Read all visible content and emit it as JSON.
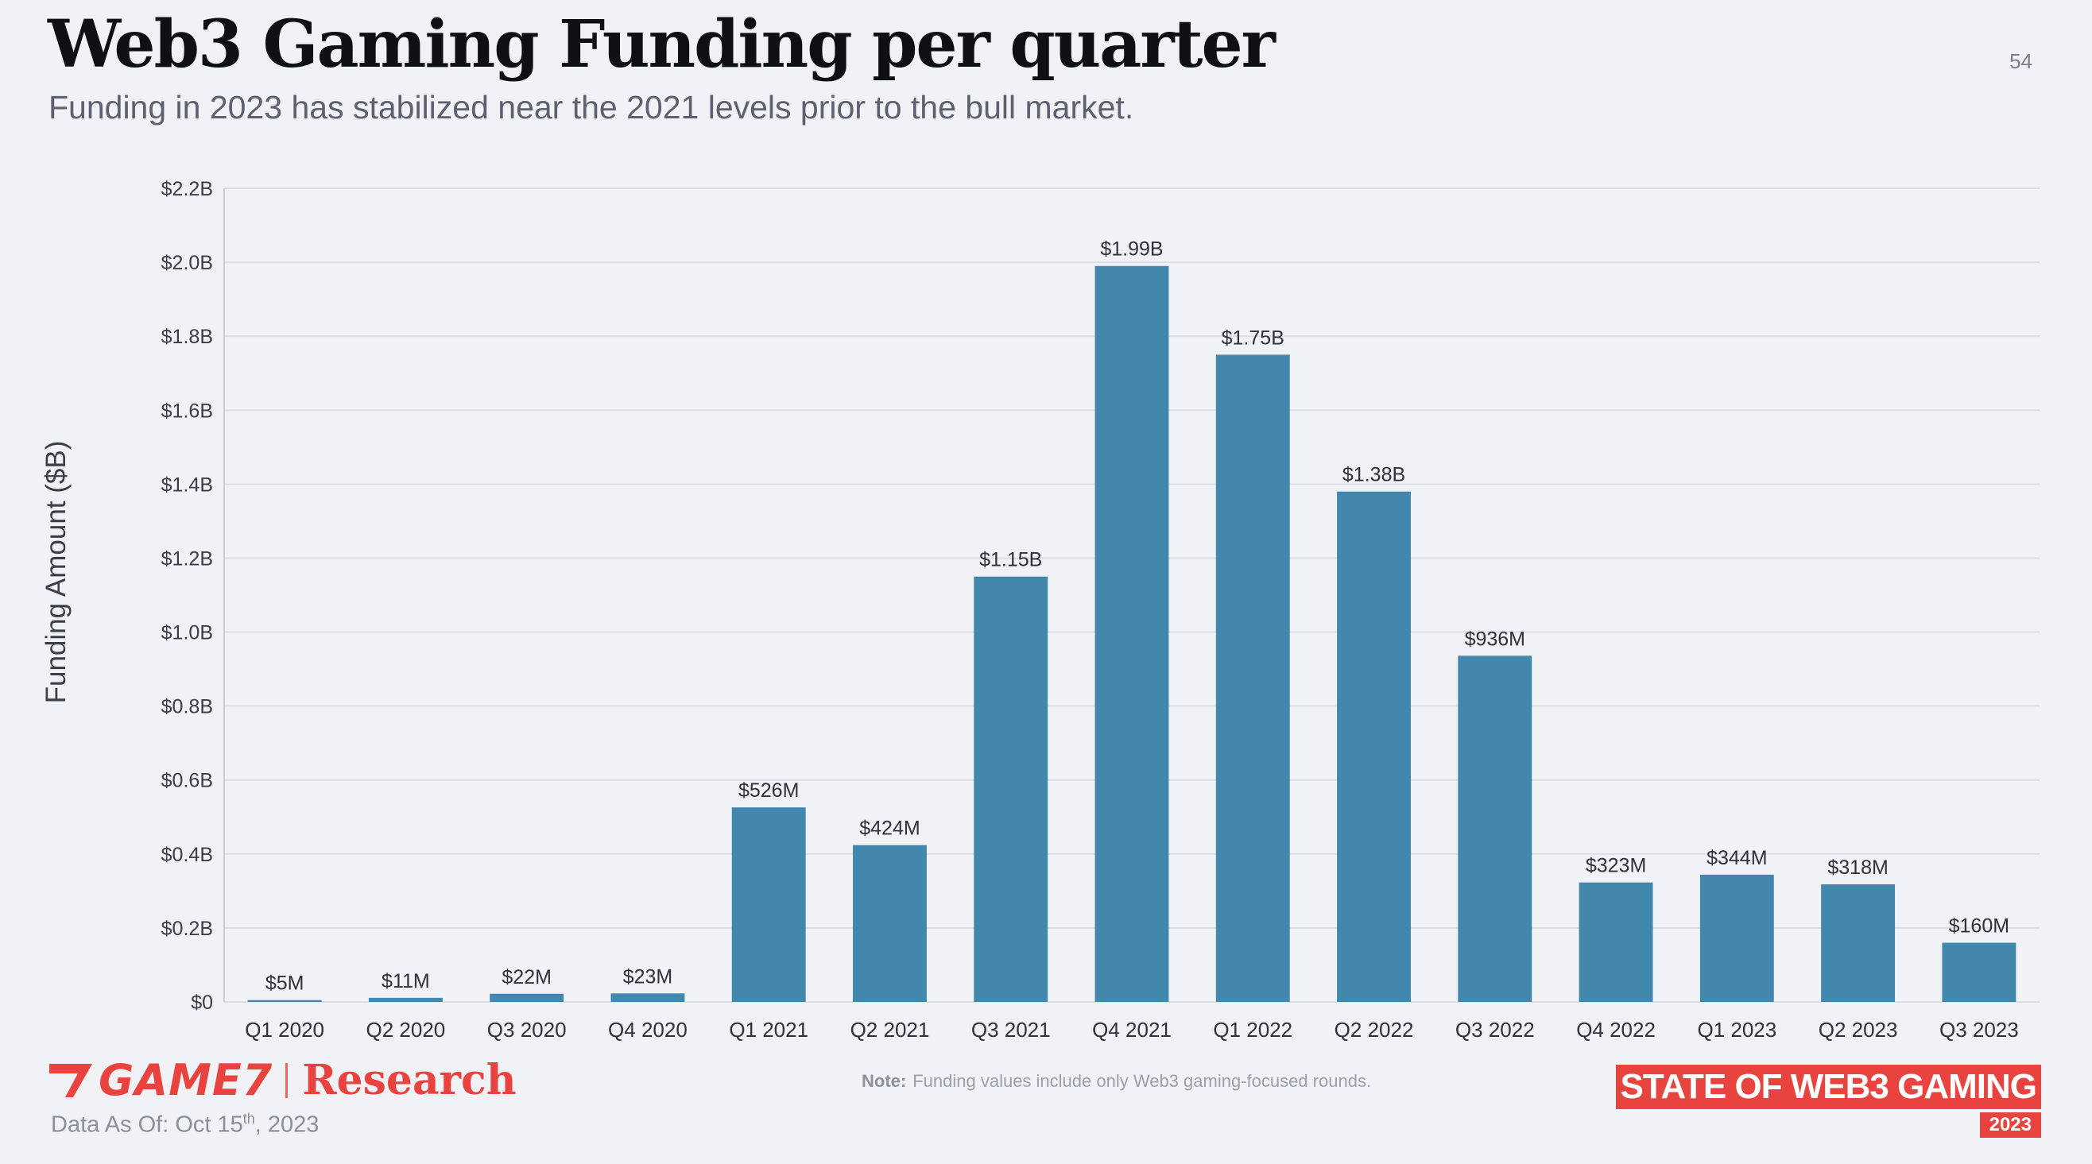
{
  "header": {
    "title": "Web3 Gaming Funding per quarter",
    "subtitle": "Funding in 2023 has stabilized near the 2021 levels prior to the bull market.",
    "page_number": "54"
  },
  "chart_data": {
    "type": "bar",
    "title": "",
    "xlabel": "",
    "ylabel": "Funding Amount ($B)",
    "categories": [
      "Q1 2020",
      "Q2 2020",
      "Q3 2020",
      "Q4 2020",
      "Q1 2021",
      "Q2 2021",
      "Q3 2021",
      "Q4 2021",
      "Q1 2022",
      "Q2 2022",
      "Q3 2022",
      "Q4 2022",
      "Q1 2023",
      "Q2 2023",
      "Q3 2023"
    ],
    "values": [
      0.005,
      0.011,
      0.022,
      0.023,
      0.526,
      0.424,
      1.15,
      1.99,
      1.75,
      1.38,
      0.936,
      0.323,
      0.344,
      0.318,
      0.16
    ],
    "data_labels": [
      "$5M",
      "$11M",
      "$22M",
      "$23M",
      "$526M",
      "$424M",
      "$1.15B",
      "$1.99B",
      "$1.75B",
      "$1.38B",
      "$936M",
      "$323M",
      "$344M",
      "$318M",
      "$160M"
    ],
    "ylim": [
      0,
      2.2
    ],
    "y_ticks": [
      0,
      0.2,
      0.4,
      0.6,
      0.8,
      1.0,
      1.2,
      1.4,
      1.6,
      1.8,
      2.0,
      2.2
    ],
    "y_tick_labels": [
      "$0",
      "$0.2B",
      "$0.4B",
      "$0.6B",
      "$0.8B",
      "$1.0B",
      "$1.2B",
      "$1.4B",
      "$1.6B",
      "$1.8B",
      "$2.0B",
      "$2.2B"
    ],
    "grid": true,
    "legend": "none",
    "bar_color": "#4287ac"
  },
  "footer": {
    "logo_text": "GAME7",
    "logo_research": "Research",
    "data_as_of_prefix": "Data As Of: Oct 15",
    "data_as_of_sup": "th",
    "data_as_of_suffix": ", 2023",
    "note_label": "Note:",
    "note_text": "Funding values include only Web3 gaming-focused rounds.",
    "badge_text": "STATE OF WEB3 GAMING",
    "badge_year": "2023"
  },
  "colors": {
    "accent": "#e8433f",
    "bar": "#4287ac",
    "background": "#f1f2f6"
  }
}
